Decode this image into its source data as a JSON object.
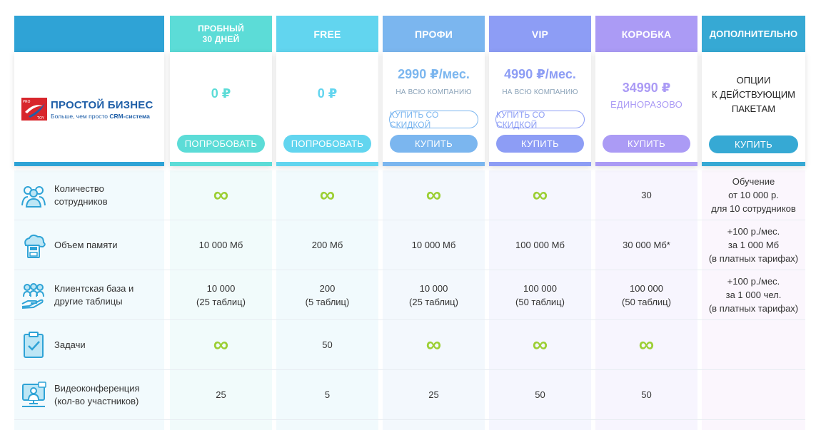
{
  "logo": {
    "title": "ПРОСТОЙ БИЗНЕС",
    "subtitle_prefix": "Больше, чем просто ",
    "subtitle_strong": "CRM-система",
    "mark_text_top": "PRO",
    "mark_text_bottom": "TOY"
  },
  "plans": [
    {
      "key": "trial",
      "header_line1": "ПРОБНЫЙ",
      "header_line2": "30 ДНЕЙ",
      "price": "0 ₽",
      "button": "ПОПРОБОВАТЬ",
      "color": "#5cdcd7"
    },
    {
      "key": "free",
      "header": "FREE",
      "price": "0 ₽",
      "button": "ПОПРОБОВАТЬ",
      "color": "#62d5ef"
    },
    {
      "key": "profi",
      "header": "ПРОФИ",
      "price": "2990 ₽/мес.",
      "price_sub": "НА ВСЮ КОМПАНИЮ",
      "discount_button": "КУПИТЬ СО СКИДКОЙ",
      "button": "КУПИТЬ",
      "color": "#7bb6ef"
    },
    {
      "key": "vip",
      "header": "VIP",
      "price": "4990 ₽/мес.",
      "price_sub": "НА ВСЮ КОМПАНИЮ",
      "discount_button": "КУПИТЬ СО СКИДКОЙ",
      "button": "КУПИТЬ",
      "color": "#8d9df5"
    },
    {
      "key": "box",
      "header": "КОРОБКА",
      "price": "34990 ₽",
      "price_sub": "ЕДИНОРАЗОВО",
      "button": "КУПИТЬ",
      "color": "#ab9bf5"
    },
    {
      "key": "extra",
      "header": "ДОПОЛНИТЕЛЬНО",
      "desc_line1": "ОПЦИИ",
      "desc_line2": "К ДЕЙСТВУЮЩИМ",
      "desc_line3": "ПАКЕТАМ",
      "button": "КУПИТЬ",
      "color": "#36a9d4"
    }
  ],
  "features": [
    {
      "label_line1": "Количество",
      "label_line2": "сотрудников",
      "icon": "employees-icon",
      "values": [
        "∞",
        "∞",
        "∞",
        "∞",
        "30"
      ],
      "extra": [
        "Обучение",
        "от 10 000 р.",
        "для 10 сотрудников"
      ]
    },
    {
      "label_line1": "Объем памяти",
      "label_line2": "",
      "icon": "cloud-storage-icon",
      "values": [
        "10 000 Мб",
        "200 Мб",
        "10 000 Мб",
        "100 000 Мб",
        "30 000 Мб*"
      ],
      "extra": [
        "+100 р./мес.",
        "за 1 000 Мб",
        "(в платных тарифах)"
      ]
    },
    {
      "label_line1": "Клиентская база и",
      "label_line2": "другие таблицы",
      "icon": "clients-icon",
      "values": [
        [
          "10 000",
          "(25 таблиц)"
        ],
        [
          "200",
          "(5 таблиц)"
        ],
        [
          "10 000",
          "(25 таблиц)"
        ],
        [
          "100 000",
          "(50 таблиц)"
        ],
        [
          "100 000",
          "(50 таблиц)"
        ]
      ],
      "extra": [
        "+100 р./мес.",
        "за 1 000 чел.",
        "(в платных тарифах)"
      ]
    },
    {
      "label_line1": "Задачи",
      "label_line2": "",
      "icon": "tasks-icon",
      "values": [
        "∞",
        "50",
        "∞",
        "∞",
        "∞"
      ],
      "extra": []
    },
    {
      "label_line1": "Видеоконференция",
      "label_line2": "(кол-во участников)",
      "icon": "video-conference-icon",
      "values": [
        "25",
        "5",
        "25",
        "50",
        "50"
      ],
      "extra": []
    }
  ]
}
